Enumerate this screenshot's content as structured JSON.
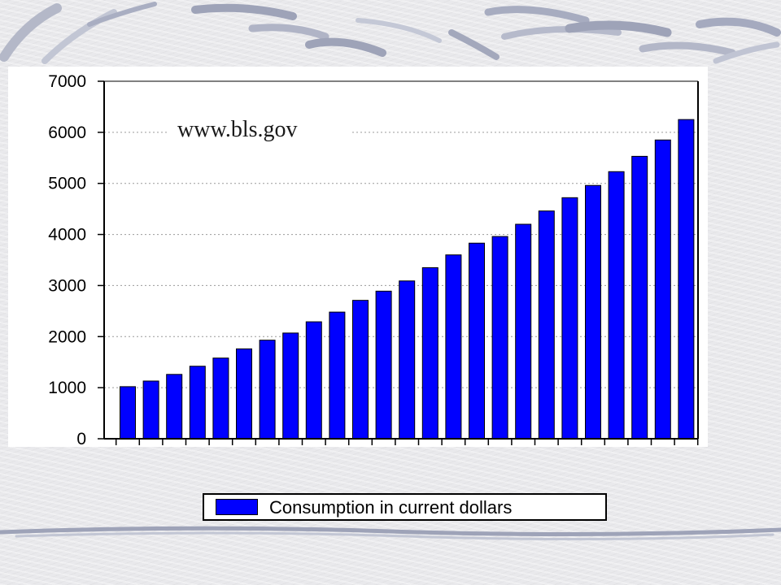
{
  "slide": {
    "watermark_text": "www.bls.gov"
  },
  "colors": {
    "bar_fill": "#0000ff",
    "bar_stroke": "#000000",
    "grid": "#9a9a9a",
    "axis": "#000000",
    "decoration": "#9aa0b8"
  },
  "chart_data": {
    "type": "bar",
    "x": [
      75,
      76,
      77,
      78,
      79,
      80,
      81,
      82,
      83,
      84,
      85,
      86,
      87,
      88,
      89,
      90,
      91,
      92,
      93,
      94,
      95,
      96,
      97,
      98,
      99
    ],
    "x_tick_labels": [
      "76",
      "78",
      "80",
      "82",
      "84",
      "86",
      "88",
      "90",
      "92",
      "94",
      "96",
      "98"
    ],
    "x_tick_label_years": [
      76,
      78,
      80,
      82,
      84,
      86,
      88,
      90,
      92,
      94,
      96,
      98
    ],
    "series": [
      {
        "name": "Consumption in current dollars",
        "values": [
          1020,
          1130,
          1260,
          1420,
          1580,
          1760,
          1930,
          2070,
          2290,
          2480,
          2710,
          2890,
          3090,
          3350,
          3600,
          3830,
          3960,
          4200,
          4460,
          4720,
          4960,
          5230,
          5530,
          5850,
          6250
        ]
      }
    ],
    "y_ticks": [
      0,
      1000,
      2000,
      3000,
      4000,
      5000,
      6000,
      7000
    ],
    "ylim": [
      0,
      7000
    ],
    "grid": "horizontal dotted",
    "legend": "bottom"
  }
}
